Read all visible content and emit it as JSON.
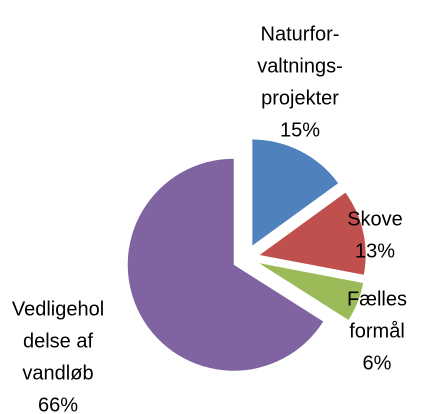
{
  "chart_data": {
    "type": "pie",
    "categories": [
      [
        "Naturfor-",
        "valtnings-",
        "projekter"
      ],
      [
        "Skove"
      ],
      [
        "Fælles",
        "formål"
      ],
      [
        "Vedligehol",
        "delse af",
        "vandløb"
      ]
    ],
    "values": [
      15,
      13,
      6,
      66
    ],
    "value_labels": [
      "15%",
      "13%",
      "6%",
      "66%"
    ],
    "colors": [
      "#4f81bd",
      "#c0504d",
      "#9bbb59",
      "#8064a2"
    ]
  }
}
